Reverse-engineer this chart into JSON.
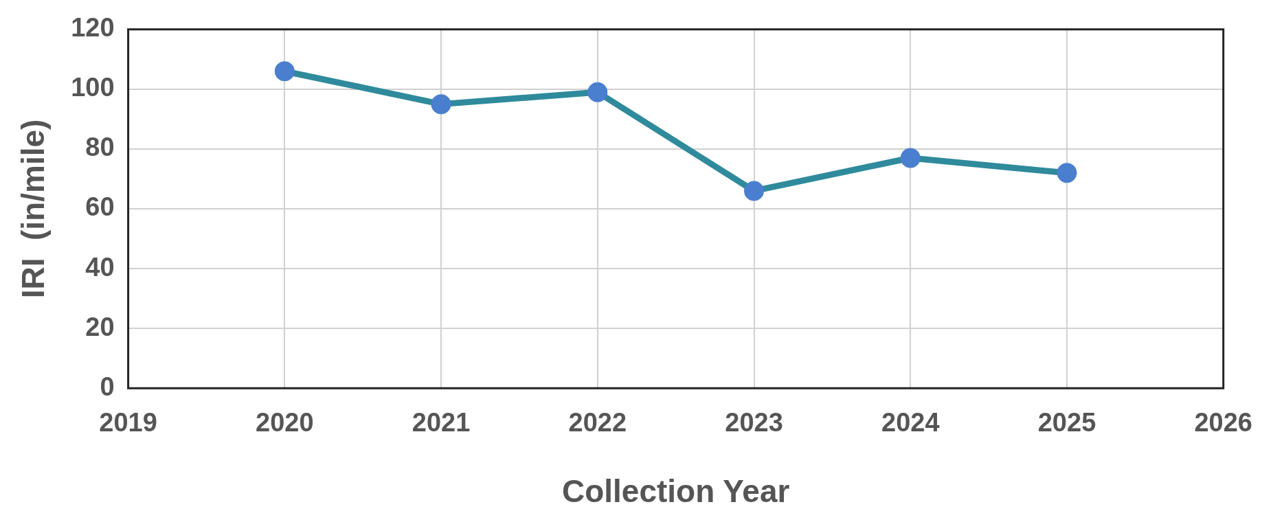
{
  "chart_data": {
    "type": "line",
    "xlabel": "Collection Year",
    "ylabel": "IRI  (in/mile)",
    "x": [
      2020,
      2021,
      2022,
      2023,
      2024,
      2025
    ],
    "series": [
      {
        "color": "#2f8a9c",
        "colors": [
          "#4a7fcf",
          "#4a7fcf",
          "#4a7fcf",
          "#4a7fcf",
          "#4a7fcf",
          "#4a7fcf"
        ],
        "values": [
          106,
          95,
          99,
          66,
          77,
          72
        ]
      }
    ],
    "xlim": [
      2019,
      2026
    ],
    "xticks": [
      2019,
      2020,
      2021,
      2022,
      2023,
      2024,
      2025,
      2026
    ],
    "ylim": [
      0,
      120
    ],
    "yticks": [
      0,
      20,
      40,
      60,
      80,
      100,
      120
    ],
    "grid": true,
    "legend": false,
    "marker": "circle",
    "line_style": "solid"
  }
}
